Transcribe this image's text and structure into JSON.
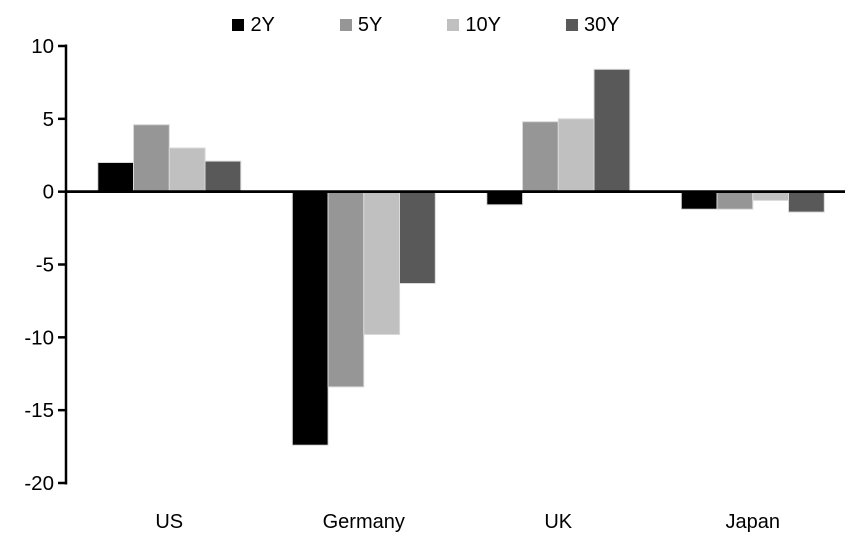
{
  "chart_data": {
    "type": "bar",
    "title": "",
    "categories": [
      "US",
      "Germany",
      "UK",
      "Japan"
    ],
    "series": [
      {
        "name": "2Y",
        "color": "#000000",
        "values": [
          2.0,
          -17.4,
          -0.9,
          -1.2
        ]
      },
      {
        "name": "5Y",
        "color": "#969696",
        "values": [
          4.6,
          -13.4,
          4.8,
          -1.2
        ]
      },
      {
        "name": "10Y",
        "color": "#c0c0c0",
        "values": [
          3.0,
          -9.8,
          5.0,
          -0.6
        ]
      },
      {
        "name": "30Y",
        "color": "#595959",
        "values": [
          2.1,
          -6.3,
          8.4,
          -1.4
        ]
      }
    ],
    "y_axis": {
      "min": -20,
      "max": 10,
      "tick_step": 5,
      "tick_labels": [
        "10",
        "5",
        "0",
        "-5",
        "-10",
        "-15",
        "-20"
      ],
      "tick_values": [
        10,
        5,
        0,
        -5,
        -10,
        -15,
        -20
      ]
    },
    "legend": {
      "position": "top",
      "entries": [
        "2Y",
        "5Y",
        "10Y",
        "30Y"
      ]
    },
    "grid": false,
    "axis_color": "#000000",
    "bar_border_color": "#d9d9d9",
    "background": "#ffffff"
  }
}
